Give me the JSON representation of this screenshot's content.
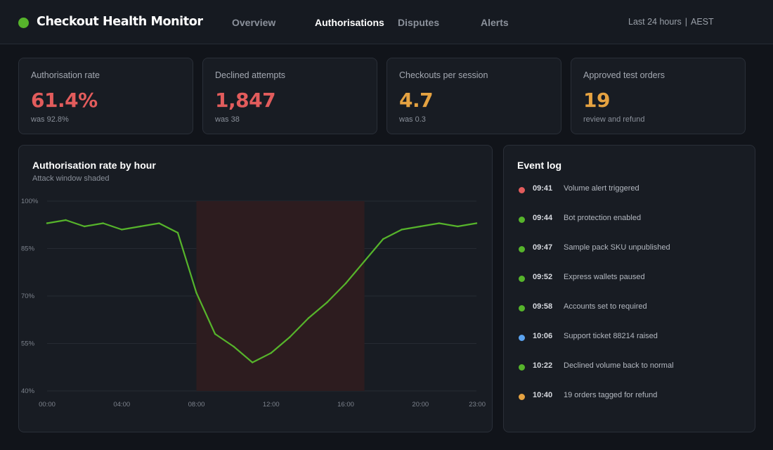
{
  "header": {
    "title": "Checkout Health Monitor",
    "status_color": "#56b42b",
    "tabs": [
      {
        "label": "Overview",
        "active": false
      },
      {
        "label": "Authorisations",
        "active": true
      },
      {
        "label": "Disputes",
        "active": false
      },
      {
        "label": "Alerts",
        "active": false
      }
    ],
    "time_range": "Last 24 hours",
    "timezone": "AEST"
  },
  "kpis": [
    {
      "label": "Authorisation rate",
      "value": "61.4%",
      "sub": "was 92.8%",
      "color": "#e25c5c"
    },
    {
      "label": "Declined attempts",
      "value": "1,847",
      "sub": "was 38",
      "color": "#e25c5c"
    },
    {
      "label": "Checkouts per session",
      "value": "4.7",
      "sub": "was 0.3",
      "color": "#e5a241"
    },
    {
      "label": "Approved test orders",
      "value": "19",
      "sub": "review and refund",
      "color": "#e5a241"
    }
  ],
  "chart_panel": {
    "title": "Authorisation rate by hour",
    "subtitle": "Attack window shaded"
  },
  "chart_data": {
    "type": "line",
    "title": "Authorisation rate by hour",
    "subtitle": "Attack window shaded",
    "xlabel": "",
    "ylabel": "",
    "x": [
      0,
      1,
      2,
      3,
      4,
      5,
      6,
      7,
      8,
      9,
      10,
      11,
      12,
      13,
      14,
      15,
      16,
      17,
      18,
      19,
      20,
      21,
      22,
      23
    ],
    "x_tick_values": [
      0,
      4,
      8,
      12,
      16,
      20,
      23
    ],
    "x_tick_labels": [
      "00:00",
      "04:00",
      "08:00",
      "12:00",
      "16:00",
      "20:00",
      "23:00"
    ],
    "y_tick_values": [
      100,
      85,
      70,
      55,
      40
    ],
    "y_tick_labels": [
      "100%",
      "85%",
      "70%",
      "55%",
      "40%"
    ],
    "xlim": [
      0,
      23
    ],
    "ylim": [
      40,
      100
    ],
    "grid": true,
    "shaded_window": [
      8,
      17
    ],
    "series": [
      {
        "values": [
          93,
          94,
          92,
          93,
          91,
          92,
          93,
          90,
          71,
          58,
          54,
          49,
          52,
          57,
          63,
          68,
          74,
          81,
          88,
          91,
          92,
          93,
          92,
          93
        ],
        "color": "#56b42b"
      }
    ],
    "shade_color": "#2d1c1f"
  },
  "event_log": {
    "title": "Event log",
    "items": [
      {
        "time": "09:41",
        "text": "Volume alert triggered",
        "color": "#e25c5c"
      },
      {
        "time": "09:44",
        "text": "Bot protection enabled",
        "color": "#56b42b"
      },
      {
        "time": "09:47",
        "text": "Sample pack SKU unpublished",
        "color": "#56b42b"
      },
      {
        "time": "09:52",
        "text": "Express wallets paused",
        "color": "#56b42b"
      },
      {
        "time": "09:58",
        "text": "Accounts set to required",
        "color": "#56b42b"
      },
      {
        "time": "10:06",
        "text": "Support ticket 88214 raised",
        "color": "#5ba3f0"
      },
      {
        "time": "10:22",
        "text": "Declined volume back to normal",
        "color": "#56b42b"
      },
      {
        "time": "10:40",
        "text": "19 orders tagged for refund",
        "color": "#e5a241"
      }
    ]
  }
}
